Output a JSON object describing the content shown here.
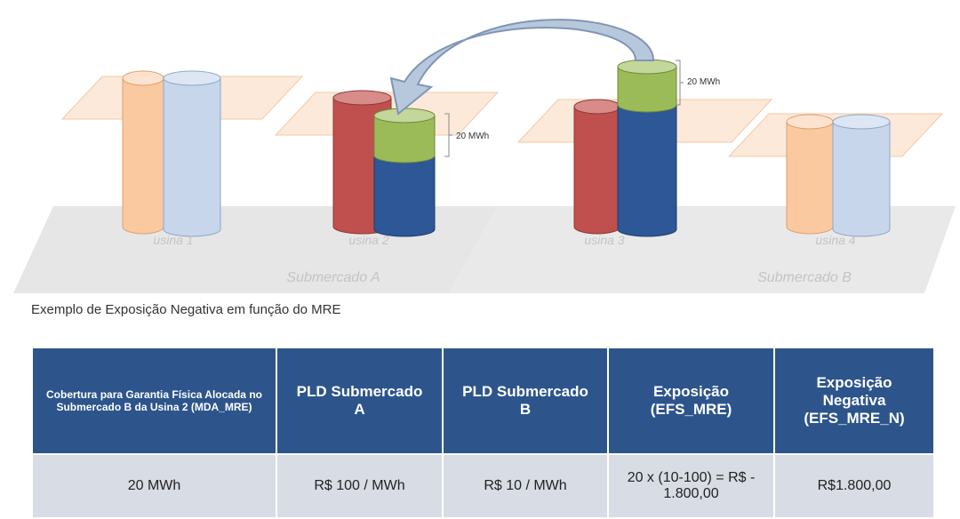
{
  "diagram": {
    "annotations": [
      "20 MWh",
      "20 MWh"
    ],
    "plant_labels": [
      "usina 1",
      "usina 2",
      "usina 3",
      "usina 4"
    ],
    "submarket_labels": [
      "Submercado A",
      "Submercado B"
    ]
  },
  "caption": "Exemplo de Exposição Negativa em função do MRE",
  "table": {
    "header": [
      "Cobertura para Garantia Física Alocada no Submercado B da Usina 2 (MDA_MRE)",
      "PLD Submercado A",
      "PLD Submercado B",
      "Exposição (EFS_MRE)",
      "Exposição Negativa (EFS_MRE_N)"
    ],
    "rows": [
      [
        "20 MWh",
        "R$ 100 / MWh",
        "R$ 10 / MWh",
        "20 x (10-100) = R$ - 1.800,00",
        "R$1.800,00"
      ]
    ]
  }
}
